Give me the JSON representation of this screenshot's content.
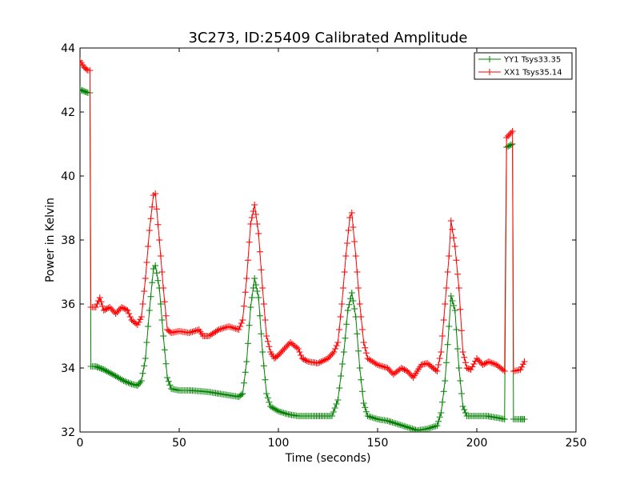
{
  "chart_data": {
    "type": "line",
    "title": "3C273, ID:25409 Calibrated Amplitude",
    "xlabel": "Time (seconds)",
    "ylabel": "Power in Kelvin",
    "xlim": [
      0,
      250
    ],
    "ylim": [
      32,
      44
    ],
    "xticks": [
      0,
      50,
      100,
      150,
      200,
      250
    ],
    "yticks": [
      32,
      34,
      36,
      38,
      40,
      42,
      44
    ],
    "grid": false,
    "legend_position": "top-right",
    "marker": "+",
    "series": [
      {
        "name": "YY1 Tsys33.35",
        "color": "#008000",
        "points": [
          [
            0,
            42.7
          ],
          [
            2,
            42.65
          ],
          [
            4,
            42.6
          ],
          [
            5,
            42.6
          ],
          [
            5.5,
            34.05
          ],
          [
            8,
            34.05
          ],
          [
            10,
            34.0
          ],
          [
            12,
            33.95
          ],
          [
            15,
            33.85
          ],
          [
            18,
            33.75
          ],
          [
            22,
            33.6
          ],
          [
            26,
            33.5
          ],
          [
            29,
            33.45
          ],
          [
            31,
            33.6
          ],
          [
            33,
            34.3
          ],
          [
            35,
            35.8
          ],
          [
            37,
            37.1
          ],
          [
            38,
            37.2
          ],
          [
            40,
            36.5
          ],
          [
            42,
            35.0
          ],
          [
            44,
            33.7
          ],
          [
            46,
            33.35
          ],
          [
            50,
            33.3
          ],
          [
            55,
            33.3
          ],
          [
            60,
            33.28
          ],
          [
            65,
            33.25
          ],
          [
            70,
            33.2
          ],
          [
            75,
            33.15
          ],
          [
            80,
            33.1
          ],
          [
            82,
            33.2
          ],
          [
            84,
            34.2
          ],
          [
            86,
            35.9
          ],
          [
            88,
            36.8
          ],
          [
            90,
            36.2
          ],
          [
            92,
            34.5
          ],
          [
            94,
            33.2
          ],
          [
            96,
            32.8
          ],
          [
            100,
            32.65
          ],
          [
            105,
            32.55
          ],
          [
            110,
            32.5
          ],
          [
            115,
            32.5
          ],
          [
            120,
            32.5
          ],
          [
            127,
            32.5
          ],
          [
            130,
            33.0
          ],
          [
            133,
            34.5
          ],
          [
            135,
            35.8
          ],
          [
            137,
            36.35
          ],
          [
            139,
            35.6
          ],
          [
            141,
            34.0
          ],
          [
            143,
            32.9
          ],
          [
            145,
            32.5
          ],
          [
            150,
            32.4
          ],
          [
            155,
            32.35
          ],
          [
            160,
            32.25
          ],
          [
            165,
            32.15
          ],
          [
            170,
            32.05
          ],
          [
            175,
            32.1
          ],
          [
            180,
            32.2
          ],
          [
            182,
            32.6
          ],
          [
            184,
            33.6
          ],
          [
            186,
            35.3
          ],
          [
            187,
            36.25
          ],
          [
            189,
            35.8
          ],
          [
            191,
            34.0
          ],
          [
            193,
            32.8
          ],
          [
            195,
            32.5
          ],
          [
            200,
            32.5
          ],
          [
            205,
            32.5
          ],
          [
            210,
            32.45
          ],
          [
            214,
            32.4
          ],
          [
            215,
            40.9
          ],
          [
            218,
            41.0
          ],
          [
            218.5,
            32.4
          ],
          [
            222,
            32.4
          ],
          [
            224,
            32.4
          ]
        ]
      },
      {
        "name": "XX1 Tsys35.14",
        "color": "#ff0000",
        "points": [
          [
            0,
            43.6
          ],
          [
            2,
            43.4
          ],
          [
            4,
            43.3
          ],
          [
            5,
            43.3
          ],
          [
            5.5,
            35.9
          ],
          [
            8,
            35.9
          ],
          [
            10,
            36.2
          ],
          [
            12,
            35.8
          ],
          [
            15,
            35.9
          ],
          [
            18,
            35.7
          ],
          [
            21,
            35.9
          ],
          [
            24,
            35.8
          ],
          [
            26,
            35.5
          ],
          [
            29,
            35.35
          ],
          [
            31,
            35.6
          ],
          [
            33,
            36.8
          ],
          [
            35,
            38.3
          ],
          [
            37,
            39.4
          ],
          [
            38,
            39.45
          ],
          [
            40,
            38.0
          ],
          [
            42,
            36.5
          ],
          [
            44,
            35.2
          ],
          [
            46,
            35.1
          ],
          [
            50,
            35.15
          ],
          [
            55,
            35.1
          ],
          [
            60,
            35.2
          ],
          [
            62,
            35.0
          ],
          [
            65,
            35.0
          ],
          [
            70,
            35.2
          ],
          [
            75,
            35.3
          ],
          [
            80,
            35.2
          ],
          [
            82,
            35.5
          ],
          [
            84,
            36.8
          ],
          [
            86,
            38.5
          ],
          [
            88,
            39.1
          ],
          [
            90,
            38.2
          ],
          [
            92,
            36.5
          ],
          [
            94,
            35.0
          ],
          [
            96,
            34.5
          ],
          [
            98,
            34.3
          ],
          [
            100,
            34.4
          ],
          [
            103,
            34.6
          ],
          [
            106,
            34.8
          ],
          [
            110,
            34.6
          ],
          [
            112,
            34.3
          ],
          [
            115,
            34.2
          ],
          [
            120,
            34.15
          ],
          [
            125,
            34.3
          ],
          [
            128,
            34.5
          ],
          [
            130,
            34.8
          ],
          [
            132,
            36.0
          ],
          [
            134,
            37.5
          ],
          [
            136,
            38.7
          ],
          [
            137,
            38.85
          ],
          [
            139,
            37.5
          ],
          [
            141,
            36.0
          ],
          [
            143,
            34.8
          ],
          [
            145,
            34.3
          ],
          [
            150,
            34.1
          ],
          [
            155,
            34.0
          ],
          [
            158,
            33.8
          ],
          [
            162,
            34.0
          ],
          [
            165,
            33.9
          ],
          [
            168,
            33.7
          ],
          [
            170,
            33.9
          ],
          [
            172,
            34.1
          ],
          [
            175,
            34.15
          ],
          [
            178,
            34.0
          ],
          [
            180,
            33.9
          ],
          [
            182,
            34.5
          ],
          [
            184,
            36.0
          ],
          [
            186,
            37.5
          ],
          [
            187,
            38.6
          ],
          [
            189,
            37.8
          ],
          [
            191,
            36.5
          ],
          [
            193,
            34.5
          ],
          [
            195,
            34.0
          ],
          [
            197,
            33.95
          ],
          [
            200,
            34.3
          ],
          [
            203,
            34.1
          ],
          [
            206,
            34.2
          ],
          [
            210,
            34.1
          ],
          [
            214,
            33.9
          ],
          [
            215,
            41.2
          ],
          [
            218,
            41.4
          ],
          [
            218.5,
            33.9
          ],
          [
            222,
            33.95
          ],
          [
            224,
            34.2
          ]
        ]
      }
    ]
  }
}
